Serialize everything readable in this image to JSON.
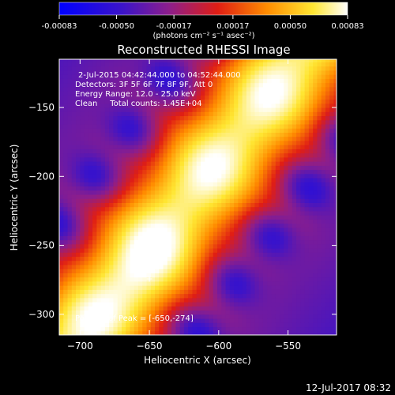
{
  "colorbar": {
    "ticks": [
      "-0.00083",
      "-0.00050",
      "-0.00017",
      "0.00017",
      "0.00050",
      "0.00083"
    ],
    "unit_label": "(photons cm⁻² s⁻¹ asec⁻²)",
    "range": [
      -0.00083,
      0.00083
    ]
  },
  "chart_data": {
    "type": "heatmap",
    "title": "Reconstructed RHESSI Image",
    "xlabel": "Heliocentric X (arcsec)",
    "ylabel": "Heliocentric Y (arcsec)",
    "xlim": [
      -715,
      -515
    ],
    "ylim": [
      -315,
      -115
    ],
    "xticks": [
      -700,
      -650,
      -600,
      -550
    ],
    "yticks": [
      -150,
      -200,
      -250,
      -300
    ],
    "colormap": "blue-purple-red-orange-yellow-white",
    "peak_position": [
      -650,
      -274
    ],
    "ridge": {
      "start": [
        -700,
        -317
      ],
      "end": [
        -545,
        -117
      ]
    },
    "annotations": [
      "2-Jul-2015 04:42:44.000 to 04:52:44.000",
      "Detectors: 3F 5F 6F 7F 8F 9F, Att 0",
      "Energy Range: 12.0 - 25.0 keV",
      "Clean     Total counts: 1.45E+04"
    ],
    "peak_label": "Position of Peak = [-650,-274]"
  },
  "timestamp": "12-Jul-2017 08:32"
}
